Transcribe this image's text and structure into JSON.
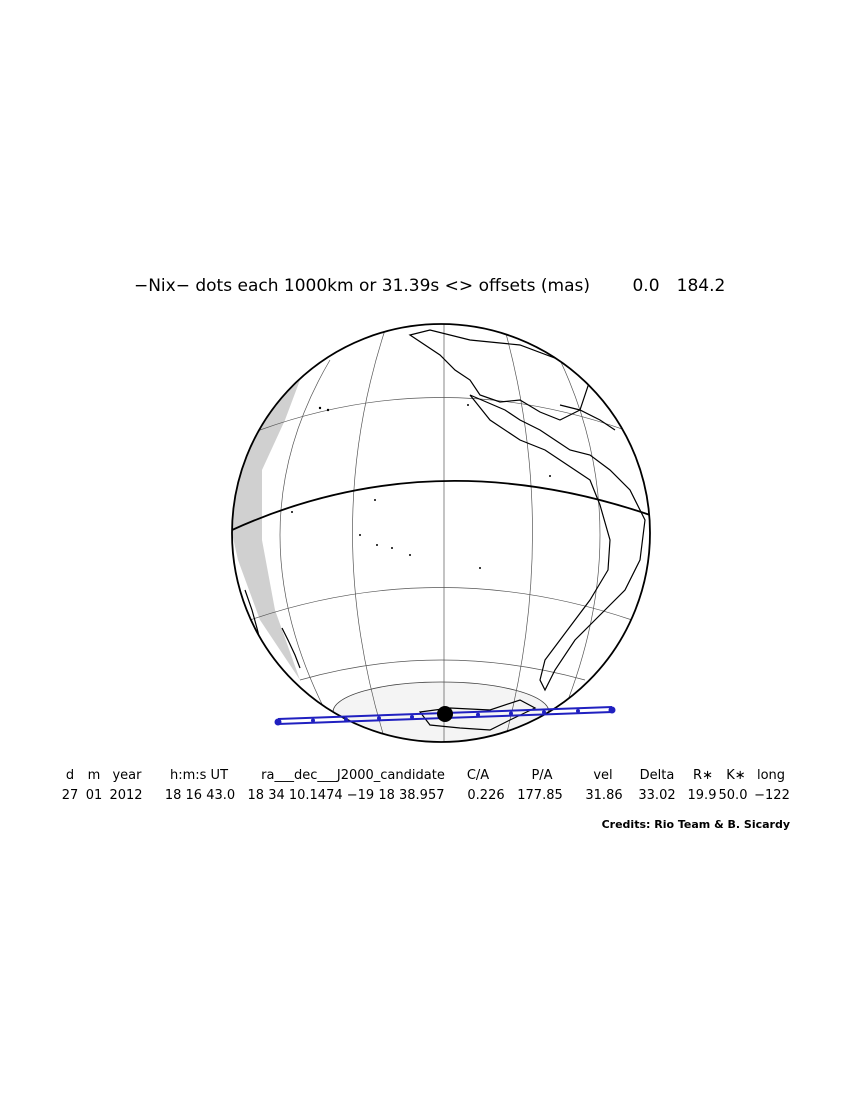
{
  "title": "−Nix− dots each 1000km or 31.39s <> offsets (mas)",
  "offset_x": "0.0",
  "offset_y": "184.2",
  "table": {
    "headers": [
      "d",
      "m",
      "year",
      "h:m:s UT",
      "ra___dec___J2000_candidate",
      "C/A",
      "P/A",
      "vel",
      "Delta",
      "R∗",
      "K∗",
      "long"
    ],
    "row": [
      "27",
      "01",
      "2012",
      "18 16 43.0",
      "18 34 10.1474 −19 18 38.957",
      "0.226",
      "177.85",
      "31.86",
      "33.02",
      "19.9",
      "50.0",
      "−122"
    ]
  },
  "credits": "Credits: Rio Team & B. Sicardy"
}
